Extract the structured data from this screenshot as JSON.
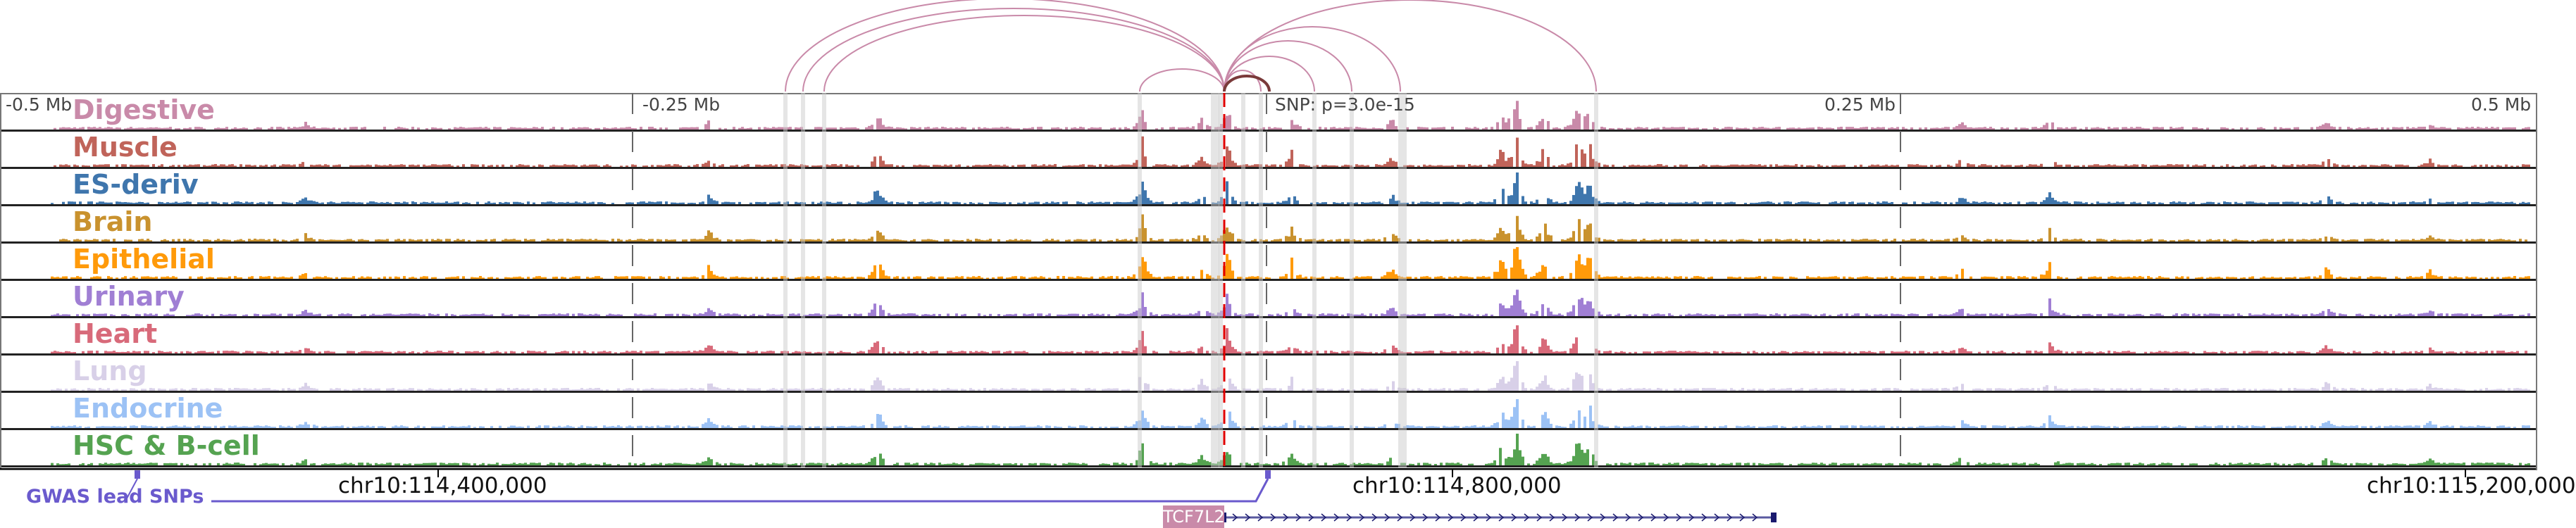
{
  "tracks": [
    {
      "label": "Digestive",
      "color": "#c98aa9"
    },
    {
      "label": "Muscle",
      "color": "#c0645a"
    },
    {
      "label": "ES-deriv",
      "color": "#3f76ad"
    },
    {
      "label": "Brain",
      "color": "#c9922e"
    },
    {
      "label": "Epithelial",
      "color": "#ff9a0a"
    },
    {
      "label": "Urinary",
      "color": "#a07fd4"
    },
    {
      "label": "Heart",
      "color": "#d86a7a"
    },
    {
      "label": "Lung",
      "color": "#d8d0e8"
    },
    {
      "label": "Endocrine",
      "color": "#9cc2f5"
    },
    {
      "label": "HSC & B-cell",
      "color": "#55a351"
    }
  ],
  "relative_ticks": {
    "minus_half": "-0.5 Mb",
    "minus_quarter": "-0.25 Mb",
    "plus_quarter": "0.25 Mb",
    "plus_half": "0.5 Mb"
  },
  "snp": {
    "label": "SNP: p=3.0e-15",
    "color": "#e00000"
  },
  "axis": {
    "ticks": [
      "chr10:114,400,000",
      "chr10:114,800,000",
      "chr10:115,200,000"
    ]
  },
  "gwas": {
    "label": "GWAS lead SNPs",
    "color": "#6a5acd"
  },
  "gene": {
    "name": "TCF7L2",
    "color": "#c98aa9",
    "strand": "+"
  },
  "arc_color": "#c98aa9"
}
